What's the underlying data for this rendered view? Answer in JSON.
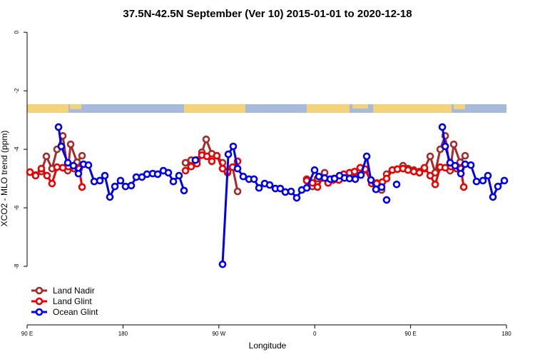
{
  "chart_data": {
    "type": "line",
    "title": "37.5N-42.5N September (Ver 10)   2015-01-01 to 2020-12-18",
    "x_label": "Longitude",
    "y_label": "XCO2 - MLO trend (ppm)",
    "xlim": [
      90,
      540
    ],
    "ylim": [
      -10,
      0.2
    ],
    "xticks": [
      {
        "value": 90,
        "label": "90 E"
      },
      180,
      {
        "value": 270,
        "label": "90 W"
      },
      {
        "value": 360,
        "label": "0"
      },
      {
        "value": 450,
        "label": "90 E"
      },
      {
        "value": 540,
        "label": "180"
      }
    ],
    "yticks": [
      0,
      -2,
      -4,
      -6,
      -8
    ],
    "legend": "bottom-left",
    "series": [
      {
        "name": "Land Nadir",
        "color": "#a52a2a",
        "x": [
          92.7,
          98.0,
          103.4,
          108.1,
          113.4,
          118.1,
          123.5,
          128.2,
          130.9,
          136.9,
          141.6,
          null,
          238.7,
          244.0,
          249.4,
          254.1,
          258.1,
          263.4,
          268.1,
          273.5,
          278.2,
          282.9,
          287.6,
          null,
          352.5,
          357.9,
          362.6,
          369.3,
          372.6,
          378.0,
          383.3,
          387.3,
          392.7,
          397.4,
          402.7,
          407.4,
          412.8,
          418.2,
          422.8,
          427.5,
          432.9,
          437.6,
          442.9,
          447.6,
          453.0,
          458.3,
          463.0,
          468.4,
          473.1,
          477.8,
          482.5,
          487.1,
          490.5,
          496.5,
          501.2
        ],
        "values": [
          -4.78,
          -4.88,
          -4.76,
          -4.24,
          -4.66,
          -4.0,
          -3.54,
          -4.73,
          -3.83,
          -4.44,
          -4.22,
          null,
          -4.46,
          -4.37,
          -4.37,
          -4.1,
          -3.66,
          -4.15,
          -4.22,
          -4.46,
          -4.8,
          -4.61,
          -5.44,
          null,
          -5.02,
          -5.27,
          -5.0,
          -4.8,
          -5.1,
          -5.0,
          -5.02,
          -4.9,
          -4.85,
          -4.8,
          -4.76,
          -4.71,
          -5.05,
          -5.15,
          -5.39,
          -4.85,
          -4.71,
          -4.68,
          -4.56,
          -4.66,
          -4.71,
          -4.76,
          -4.66,
          -4.24,
          -4.8,
          -4.0,
          -3.54,
          -4.73,
          -3.83,
          -4.44,
          -4.22
        ]
      },
      {
        "name": "Land Glint",
        "color": "#ee0000",
        "x": [
          92.7,
          98.0,
          103.4,
          108.7,
          113.4,
          118.1,
          123.5,
          128.8,
          134.2,
          138.9,
          141.6,
          null,
          238.7,
          244.0,
          249.4,
          254.1,
          258.8,
          263.4,
          268.1,
          273.5,
          278.2,
          282.9,
          287.6,
          null,
          352.5,
          357.9,
          362.6,
          367.3,
          372.6,
          377.3,
          382.7,
          387.3,
          392.7,
          397.4,
          402.7,
          407.4,
          413.5,
          418.2,
          423.5,
          427.5,
          432.9,
          437.6,
          442.9,
          447.6,
          453.0,
          458.3,
          463.0,
          468.4,
          473.1,
          477.8,
          482.5,
          487.8,
          493.2,
          497.2,
          499.9
        ],
        "values": [
          -4.78,
          -4.9,
          -4.66,
          -4.9,
          -5.17,
          -4.61,
          -4.63,
          -4.59,
          -4.66,
          -4.66,
          -5.29,
          null,
          -4.73,
          -4.59,
          -4.49,
          -4.2,
          -4.24,
          -4.41,
          -4.22,
          -4.66,
          -4.76,
          -4.61,
          -4.41,
          null,
          -5.07,
          -5.15,
          -5.29,
          -4.98,
          -5.15,
          -5.05,
          -5.05,
          -4.85,
          -4.8,
          -4.76,
          -4.63,
          -4.68,
          -5.17,
          -5.17,
          -5.12,
          -5.0,
          -4.71,
          -4.68,
          -4.66,
          -4.71,
          -4.76,
          -4.8,
          -4.63,
          -4.9,
          -5.2,
          -4.61,
          -4.63,
          -4.59,
          -4.66,
          -4.66,
          -5.29
        ]
      },
      {
        "name": "Ocean Glint",
        "color": "#0000ee",
        "x": [
          119.5,
          122.1,
          128.2,
          133.5,
          138.2,
          142.9,
          147.6,
          153.0,
          158.3,
          163.0,
          167.7,
          172.4,
          177.7,
          182.4,
          187.8,
          192.5,
          197.8,
          202.5,
          207.9,
          212.6,
          217.9,
          222.6,
          227.3,
          232.6,
          237.3,
          null,
          248.0,
          null,
          273.5,
          278.9,
          283.5,
          287.6,
          292.9,
          298.3,
          303.0,
          307.7,
          313.0,
          317.7,
          323.1,
          327.7,
          332.4,
          337.8,
          343.1,
          347.8,
          352.5,
          359.9,
          363.9,
          369.3,
          374.6,
          378.6,
          383.3,
          388.0,
          392.7,
          398.1,
          403.4,
          408.8,
          412.8,
          417.5,
          422.8,
          null,
          427.5,
          null,
          436.9,
          null,
          479.8,
          482.5,
          487.1,
          491.8,
          497.2,
          501.2,
          506.6,
          511.9,
          517.9,
          522.6,
          527.3,
          532.0,
          538.0
        ],
        "values": [
          -3.24,
          -3.9,
          -4.46,
          -4.56,
          -4.83,
          -4.51,
          -4.54,
          -5.1,
          -5.07,
          -4.9,
          -5.63,
          -5.27,
          -5.07,
          -5.27,
          -5.24,
          -4.95,
          -4.95,
          -4.85,
          -4.83,
          -4.85,
          -4.73,
          -4.8,
          -5.1,
          -4.9,
          -5.41,
          null,
          -4.37,
          null,
          -7.93,
          -4.17,
          -3.9,
          -4.66,
          -4.93,
          -5.02,
          -5.02,
          -5.32,
          -5.17,
          -5.22,
          -5.34,
          -5.34,
          -5.46,
          -5.44,
          -5.66,
          -5.39,
          -5.32,
          -4.71,
          -4.93,
          -4.98,
          -5.02,
          -5.0,
          -4.9,
          -4.98,
          -5.0,
          -5.02,
          -4.88,
          -4.24,
          -5.05,
          -5.37,
          -5.29,
          null,
          -5.73,
          null,
          -5.2,
          null,
          -3.24,
          -3.9,
          -4.46,
          -4.56,
          -4.83,
          -4.51,
          -4.54,
          -5.1,
          -5.07,
          -4.9,
          -5.63,
          -5.27,
          -5.07
        ]
      }
    ]
  }
}
